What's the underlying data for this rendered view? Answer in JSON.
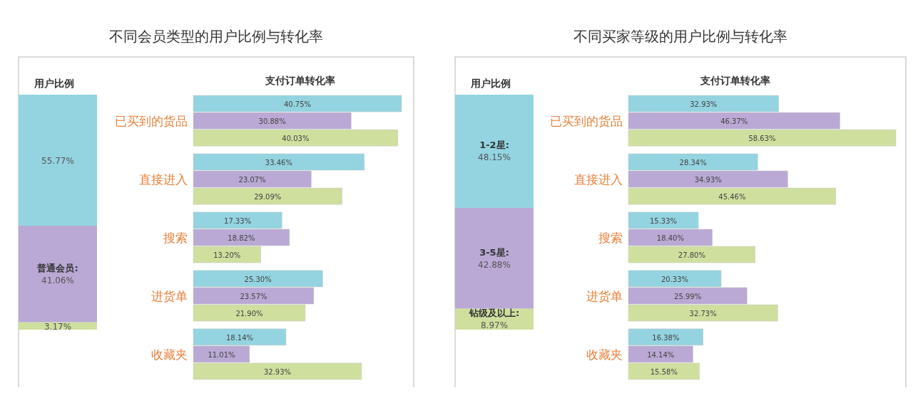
{
  "chart_data": [
    {
      "type": "bar",
      "stacked": true,
      "title": "用户比例",
      "categories": [
        null
      ],
      "series": [
        {
          "color": "#cfdf9e",
          "values": [
            3.17
          ],
          "value_labels": [
            "3.17%"
          ]
        },
        {
          "name": "普通会员:",
          "color": "#b9a9d4",
          "values": [
            41.06
          ],
          "value_labels": [
            "41.06%"
          ]
        },
        {
          "color": "#93d4e0",
          "values": [
            55.77
          ],
          "value_labels": [
            "55.77%"
          ]
        }
      ]
    },
    {
      "type": "bar",
      "orientation": "horizontal",
      "title": "不同会员类型的用户比例与转化率",
      "subtitle": "支付订单转化率",
      "categories": [
        "已买到的货品",
        "直接进入",
        "搜索",
        "进货单",
        "收藏夹"
      ],
      "series": [
        {
          "color": "#93d4e0",
          "values": [
            40.75,
            33.46,
            17.33,
            25.3,
            18.14
          ],
          "value_labels": [
            "40.75%",
            "33.46%",
            "17.33%",
            "25.30%",
            "18.14%"
          ]
        },
        {
          "color": "#b9a9d4",
          "values": [
            30.88,
            23.07,
            18.82,
            23.57,
            11.01
          ],
          "value_labels": [
            "30.88%",
            "23.07%",
            "18.82%",
            "23.57%",
            "11.01%"
          ]
        },
        {
          "color": "#cfdf9e",
          "values": [
            40.03,
            29.09,
            13.2,
            21.9,
            32.93
          ],
          "value_labels": [
            "40.03%",
            "29.09%",
            "13.20%",
            "21.90%",
            "32.93%"
          ]
        }
      ]
    },
    {
      "type": "bar",
      "stacked": true,
      "title": "用户比例",
      "categories": [
        null
      ],
      "series": [
        {
          "name": "钻级及以上:",
          "color": "#cfdf9e",
          "values": [
            8.97
          ],
          "value_labels": [
            "8.97%"
          ]
        },
        {
          "name": "3-5星:",
          "color": "#b9a9d4",
          "values": [
            42.88
          ],
          "value_labels": [
            "42.88%"
          ]
        },
        {
          "name": "1-2星:",
          "color": "#93d4e0",
          "values": [
            48.15
          ],
          "value_labels": [
            "48.15%"
          ]
        }
      ]
    },
    {
      "type": "bar",
      "orientation": "horizontal",
      "title": "不同买家等级的用户比例与转化率",
      "subtitle": "支付订单转化率",
      "categories": [
        "已买到的货品",
        "直接进入",
        "搜索",
        "进货单",
        "收藏夹"
      ],
      "series": [
        {
          "color": "#93d4e0",
          "values": [
            32.93,
            28.34,
            15.33,
            20.33,
            16.38
          ],
          "value_labels": [
            "32.93%",
            "28.34%",
            "15.33%",
            "20.33%",
            "16.38%"
          ]
        },
        {
          "color": "#b9a9d4",
          "values": [
            46.37,
            34.93,
            18.4,
            25.99,
            14.14
          ],
          "value_labels": [
            "46.37%",
            "34.93%",
            "18.40%",
            "25.99%",
            "14.14%"
          ]
        },
        {
          "color": "#cfdf9e",
          "values": [
            58.63,
            45.46,
            27.8,
            32.73,
            15.58
          ],
          "value_labels": [
            "58.63%",
            "45.46%",
            "27.80%",
            "32.73%",
            "15.58%"
          ]
        }
      ]
    }
  ]
}
